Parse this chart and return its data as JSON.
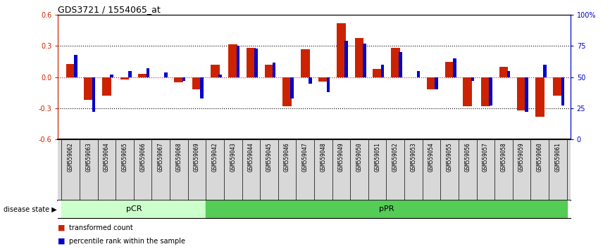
{
  "title": "GDS3721 / 1554065_at",
  "samples": [
    "GSM559062",
    "GSM559063",
    "GSM559064",
    "GSM559065",
    "GSM559066",
    "GSM559067",
    "GSM559068",
    "GSM559069",
    "GSM559042",
    "GSM559043",
    "GSM559044",
    "GSM559045",
    "GSM559046",
    "GSM559047",
    "GSM559048",
    "GSM559049",
    "GSM559050",
    "GSM559051",
    "GSM559052",
    "GSM559053",
    "GSM559054",
    "GSM559055",
    "GSM559056",
    "GSM559057",
    "GSM559058",
    "GSM559059",
    "GSM559060",
    "GSM559061"
  ],
  "red_values": [
    0.13,
    -0.22,
    -0.18,
    -0.02,
    0.03,
    0.0,
    -0.05,
    -0.12,
    0.12,
    0.32,
    0.28,
    0.12,
    -0.28,
    0.27,
    -0.04,
    0.52,
    0.38,
    0.08,
    0.28,
    0.0,
    -0.12,
    0.15,
    -0.28,
    -0.28,
    0.1,
    -0.32,
    -0.38,
    -0.18
  ],
  "blue_values": [
    68,
    22,
    52,
    55,
    57,
    54,
    47,
    33,
    52,
    75,
    73,
    62,
    33,
    45,
    38,
    79,
    77,
    60,
    70,
    55,
    40,
    65,
    47,
    27,
    55,
    22,
    60,
    27
  ],
  "pcr_count": 8,
  "ppr_count": 20,
  "pCR_color": "#ccffcc",
  "pPR_color": "#55cc55",
  "red_color": "#cc2200",
  "blue_color": "#0000cc",
  "ylim": [
    -0.6,
    0.6
  ],
  "yticks_left": [
    -0.6,
    -0.3,
    0.0,
    0.3,
    0.6
  ],
  "yticks_right": [
    0,
    25,
    50,
    75,
    100
  ],
  "hline_vals": [
    -0.3,
    0.0,
    0.3
  ],
  "red_bar_width": 0.5,
  "blue_bar_width": 0.18
}
